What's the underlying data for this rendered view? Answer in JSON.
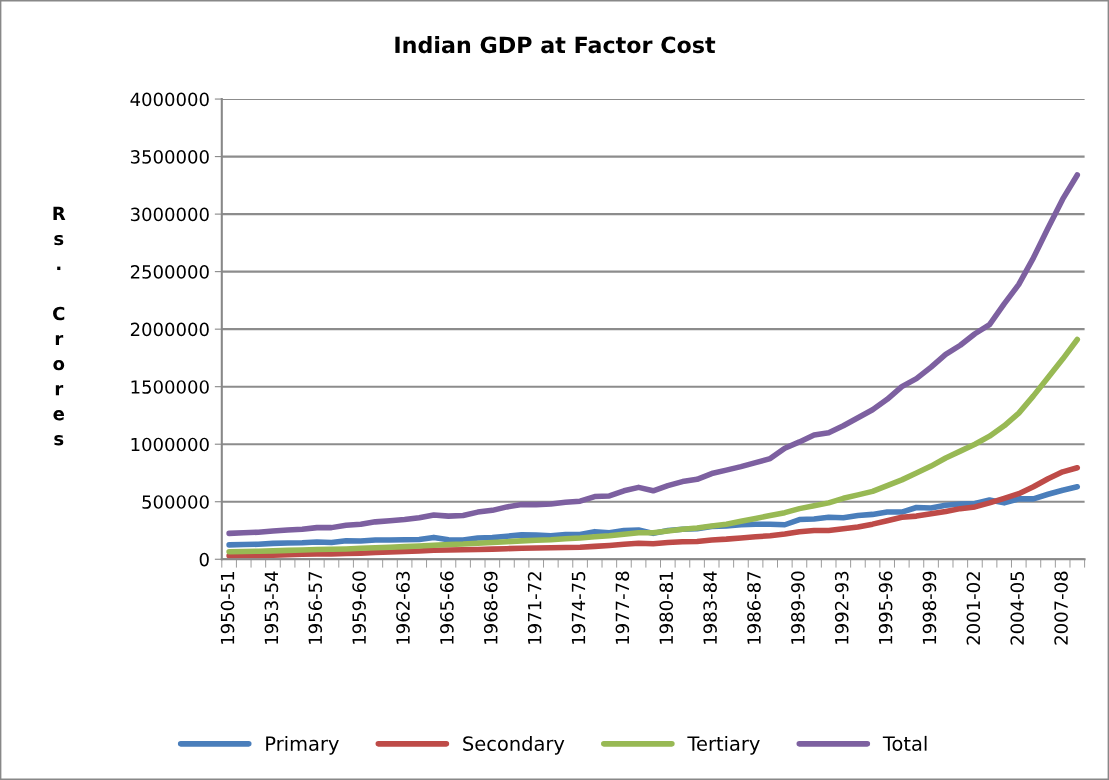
{
  "chart_data": {
    "type": "line",
    "title": "Indian GDP at Factor Cost",
    "ylabel": "Rs. Crores",
    "categories": [
      "1950-51",
      null,
      null,
      "1953-54",
      null,
      null,
      "1956-57",
      null,
      null,
      "1959-60",
      null,
      null,
      "1962-63",
      null,
      null,
      "1965-66",
      null,
      null,
      "1968-69",
      null,
      null,
      "1971-72",
      null,
      null,
      "1974-75",
      null,
      null,
      "1977-78",
      null,
      null,
      "1980-81",
      null,
      null,
      "1983-84",
      null,
      null,
      "1986-87",
      null,
      null,
      "1989-90",
      null,
      null,
      "1992-93",
      null,
      null,
      "1995-96",
      null,
      null,
      "1998-99",
      null,
      null,
      "2001-02",
      null,
      null,
      "2004-05",
      null,
      null,
      "2007-08",
      null
    ],
    "series": [
      {
        "name": "Primary",
        "color": "#4a7ebb",
        "values": [
          125000,
          128000,
          130000,
          138000,
          142000,
          143000,
          150000,
          145000,
          160000,
          158000,
          168000,
          168000,
          170000,
          172000,
          190000,
          170000,
          168000,
          185000,
          188000,
          200000,
          212000,
          210000,
          205000,
          215000,
          215000,
          240000,
          230000,
          250000,
          255000,
          225000,
          250000,
          260000,
          265000,
          285000,
          290000,
          300000,
          305000,
          305000,
          300000,
          345000,
          350000,
          365000,
          360000,
          380000,
          390000,
          410000,
          410000,
          450000,
          445000,
          470000,
          480000,
          485000,
          515000,
          490000,
          525000,
          525000,
          565000,
          600000,
          630000
        ]
      },
      {
        "name": "Secondary",
        "color": "#be4b48",
        "values": [
          30000,
          32000,
          33000,
          36000,
          40000,
          43000,
          46000,
          47000,
          50000,
          53000,
          58000,
          63000,
          68000,
          72000,
          78000,
          80000,
          82000,
          85000,
          88000,
          92000,
          96000,
          98000,
          100000,
          102000,
          105000,
          112000,
          120000,
          130000,
          140000,
          135000,
          145000,
          152000,
          155000,
          168000,
          175000,
          185000,
          195000,
          205000,
          220000,
          240000,
          250000,
          250000,
          265000,
          280000,
          305000,
          335000,
          365000,
          375000,
          395000,
          415000,
          440000,
          455000,
          490000,
          530000,
          570000,
          630000,
          700000,
          760000,
          795000
        ]
      },
      {
        "name": "Tertiary",
        "color": "#98b954",
        "values": [
          65000,
          67000,
          70000,
          73000,
          77000,
          80000,
          84000,
          87000,
          90000,
          95000,
          100000,
          105000,
          110000,
          115000,
          122000,
          128000,
          132000,
          140000,
          146000,
          153000,
          160000,
          165000,
          170000,
          178000,
          185000,
          195000,
          205000,
          218000,
          230000,
          230000,
          245000,
          260000,
          272000,
          290000,
          305000,
          330000,
          355000,
          380000,
          405000,
          440000,
          465000,
          490000,
          530000,
          560000,
          590000,
          640000,
          690000,
          750000,
          810000,
          880000,
          940000,
          1000000,
          1070000,
          1160000,
          1270000,
          1420000,
          1580000,
          1740000,
          1910000
        ]
      },
      {
        "name": "Total",
        "color": "#7d60a0",
        "values": [
          225000,
          230000,
          235000,
          245000,
          255000,
          260000,
          275000,
          275000,
          295000,
          305000,
          325000,
          335000,
          345000,
          360000,
          385000,
          375000,
          380000,
          410000,
          425000,
          455000,
          475000,
          475000,
          480000,
          495000,
          505000,
          545000,
          550000,
          595000,
          625000,
          595000,
          640000,
          675000,
          695000,
          745000,
          775000,
          805000,
          840000,
          875000,
          965000,
          1020000,
          1080000,
          1100000,
          1160000,
          1230000,
          1300000,
          1390000,
          1500000,
          1570000,
          1670000,
          1780000,
          1860000,
          1960000,
          2040000,
          2220000,
          2390000,
          2620000,
          2880000,
          3130000,
          3340000
        ]
      }
    ],
    "ylim": [
      0,
      4000000
    ],
    "yticks": [
      0,
      500000,
      1000000,
      1500000,
      2000000,
      2500000,
      3000000,
      3500000,
      4000000
    ],
    "grid": "y",
    "legend": "bottom",
    "marker": "none",
    "line_style": "solid"
  }
}
